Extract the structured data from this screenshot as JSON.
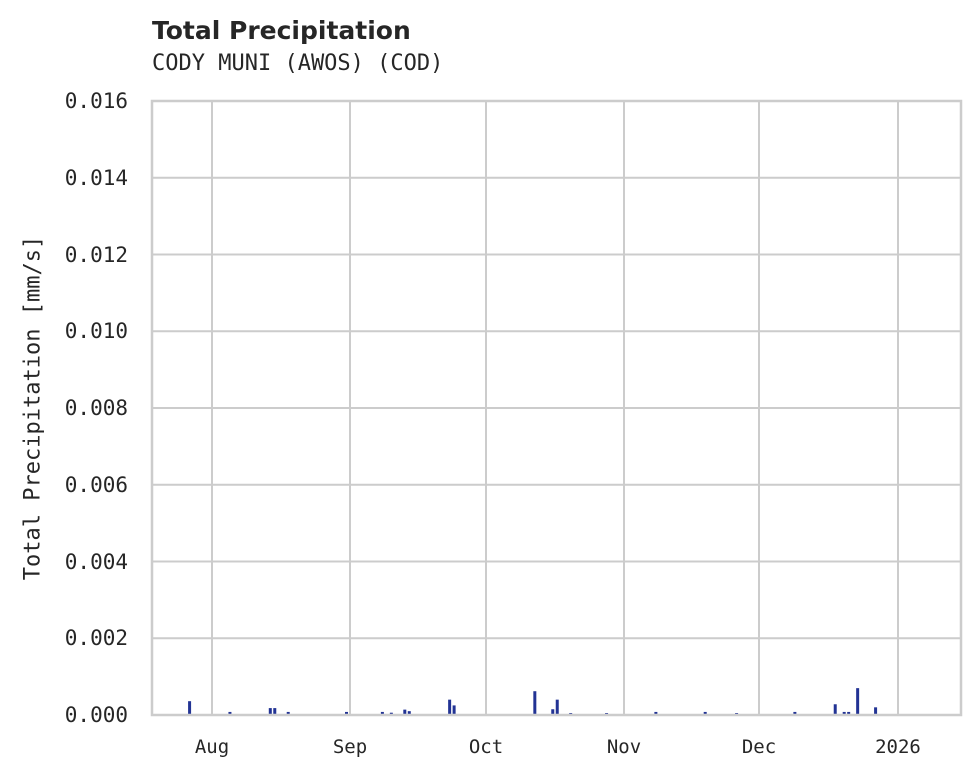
{
  "header": {
    "title": "Total Precipitation",
    "subtitle": "CODY MUNI (AWOS) (COD)"
  },
  "colors": {
    "series": "#223394",
    "grid": "#cccccc",
    "text": "#262626"
  },
  "chart_data": {
    "type": "bar",
    "title": "Total Precipitation",
    "subtitle": "CODY MUNI (AWOS) (COD)",
    "xlabel": "",
    "ylabel": "Total Precipitation [mm/s]",
    "ylim": [
      0,
      0.016
    ],
    "yticks": [
      "0.000",
      "0.002",
      "0.004",
      "0.006",
      "0.008",
      "0.010",
      "0.012",
      "0.014",
      "0.016"
    ],
    "xticks": [
      "Aug",
      "Sep",
      "Oct",
      "Nov",
      "Dec",
      "2026"
    ],
    "grid": true,
    "legend": null,
    "series": [
      {
        "name": "Total Precipitation",
        "points": [
          {
            "x": "Jul 27",
            "y": 0.00036
          },
          {
            "x": "Aug 5",
            "y": 8e-05
          },
          {
            "x": "Aug 14",
            "y": 0.00018
          },
          {
            "x": "Aug 15",
            "y": 0.00018
          },
          {
            "x": "Aug 18",
            "y": 8e-05
          },
          {
            "x": "Aug 31",
            "y": 8e-05
          },
          {
            "x": "Sep 8",
            "y": 8e-05
          },
          {
            "x": "Sep 10",
            "y": 6e-05
          },
          {
            "x": "Sep 13",
            "y": 0.00014
          },
          {
            "x": "Sep 14",
            "y": 0.0001
          },
          {
            "x": "Sep 23",
            "y": 0.0004
          },
          {
            "x": "Sep 24",
            "y": 0.00025
          },
          {
            "x": "Oct 12",
            "y": 0.00062
          },
          {
            "x": "Oct 16",
            "y": 0.00015
          },
          {
            "x": "Oct 17",
            "y": 0.0004
          },
          {
            "x": "Oct 20",
            "y": 5e-05
          },
          {
            "x": "Oct 28",
            "y": 5e-05
          },
          {
            "x": "Nov 8",
            "y": 8e-05
          },
          {
            "x": "Nov 19",
            "y": 8e-05
          },
          {
            "x": "Nov 26",
            "y": 5e-05
          },
          {
            "x": "Dec 9",
            "y": 8e-05
          },
          {
            "x": "Dec 18",
            "y": 0.00028
          },
          {
            "x": "Dec 20",
            "y": 8e-05
          },
          {
            "x": "Dec 21",
            "y": 8e-05
          },
          {
            "x": "Dec 23",
            "y": 0.0007
          },
          {
            "x": "Dec 27",
            "y": 0.0002
          }
        ]
      }
    ]
  }
}
